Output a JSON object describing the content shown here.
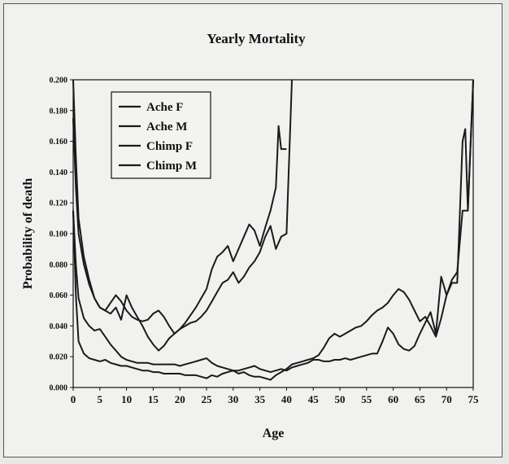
{
  "chart_data": {
    "type": "line",
    "title": "Yearly Mortality",
    "xlabel": "Age",
    "ylabel": "Probability of death",
    "xlim": [
      0,
      75
    ],
    "ylim": [
      0,
      0.2
    ],
    "xticks": [
      0,
      5,
      10,
      15,
      20,
      25,
      30,
      35,
      40,
      45,
      50,
      55,
      60,
      65,
      70,
      75
    ],
    "yticks": [
      "0.000",
      "0.020",
      "0.040",
      "0.060",
      "0.080",
      "0.100",
      "0.120",
      "0.140",
      "0.160",
      "0.180",
      "0.200"
    ],
    "legend_position": "top-left",
    "line_color": "#1a1a1a",
    "series": [
      {
        "name": "Ache F",
        "points": [
          [
            0,
            0.115
          ],
          [
            0.5,
            0.06
          ],
          [
            1,
            0.03
          ],
          [
            2,
            0.022
          ],
          [
            3,
            0.019
          ],
          [
            4,
            0.018
          ],
          [
            5,
            0.017
          ],
          [
            6,
            0.018
          ],
          [
            7,
            0.016
          ],
          [
            8,
            0.015
          ],
          [
            9,
            0.014
          ],
          [
            10,
            0.014
          ],
          [
            11,
            0.013
          ],
          [
            12,
            0.012
          ],
          [
            13,
            0.011
          ],
          [
            14,
            0.011
          ],
          [
            15,
            0.01
          ],
          [
            16,
            0.01
          ],
          [
            17,
            0.009
          ],
          [
            18,
            0.009
          ],
          [
            19,
            0.009
          ],
          [
            20,
            0.009
          ],
          [
            21,
            0.008
          ],
          [
            22,
            0.008
          ],
          [
            23,
            0.008
          ],
          [
            24,
            0.007
          ],
          [
            25,
            0.006
          ],
          [
            26,
            0.008
          ],
          [
            27,
            0.007
          ],
          [
            28,
            0.009
          ],
          [
            29,
            0.01
          ],
          [
            30,
            0.011
          ],
          [
            31,
            0.009
          ],
          [
            32,
            0.01
          ],
          [
            33,
            0.008
          ],
          [
            34,
            0.007
          ],
          [
            35,
            0.007
          ],
          [
            36,
            0.006
          ],
          [
            37,
            0.005
          ],
          [
            38,
            0.008
          ],
          [
            39,
            0.01
          ],
          [
            40,
            0.012
          ],
          [
            41,
            0.015
          ],
          [
            42,
            0.016
          ],
          [
            43,
            0.017
          ],
          [
            44,
            0.018
          ],
          [
            45,
            0.019
          ],
          [
            46,
            0.021
          ],
          [
            47,
            0.026
          ],
          [
            48,
            0.032
          ],
          [
            49,
            0.035
          ],
          [
            50,
            0.033
          ],
          [
            51,
            0.035
          ],
          [
            52,
            0.037
          ],
          [
            53,
            0.039
          ],
          [
            54,
            0.04
          ],
          [
            55,
            0.043
          ],
          [
            56,
            0.047
          ],
          [
            57,
            0.05
          ],
          [
            58,
            0.052
          ],
          [
            59,
            0.055
          ],
          [
            60,
            0.06
          ],
          [
            61,
            0.064
          ],
          [
            62,
            0.062
          ],
          [
            63,
            0.057
          ],
          [
            64,
            0.05
          ],
          [
            65,
            0.043
          ],
          [
            66,
            0.046
          ],
          [
            67,
            0.04
          ],
          [
            68,
            0.033
          ],
          [
            69,
            0.045
          ],
          [
            70,
            0.06
          ],
          [
            71,
            0.07
          ],
          [
            72,
            0.075
          ],
          [
            73,
            0.115
          ],
          [
            74,
            0.115
          ],
          [
            75,
            0.2
          ]
        ]
      },
      {
        "name": "Ache M",
        "points": [
          [
            0,
            0.115
          ],
          [
            0.5,
            0.08
          ],
          [
            1,
            0.058
          ],
          [
            2,
            0.045
          ],
          [
            3,
            0.04
          ],
          [
            4,
            0.037
          ],
          [
            5,
            0.038
          ],
          [
            6,
            0.033
          ],
          [
            7,
            0.028
          ],
          [
            8,
            0.024
          ],
          [
            9,
            0.02
          ],
          [
            10,
            0.018
          ],
          [
            11,
            0.017
          ],
          [
            12,
            0.016
          ],
          [
            13,
            0.016
          ],
          [
            14,
            0.016
          ],
          [
            15,
            0.015
          ],
          [
            16,
            0.015
          ],
          [
            17,
            0.015
          ],
          [
            18,
            0.015
          ],
          [
            19,
            0.015
          ],
          [
            20,
            0.014
          ],
          [
            21,
            0.015
          ],
          [
            22,
            0.016
          ],
          [
            23,
            0.017
          ],
          [
            24,
            0.018
          ],
          [
            25,
            0.019
          ],
          [
            26,
            0.016
          ],
          [
            27,
            0.014
          ],
          [
            28,
            0.013
          ],
          [
            29,
            0.012
          ],
          [
            30,
            0.011
          ],
          [
            31,
            0.011
          ],
          [
            32,
            0.012
          ],
          [
            33,
            0.013
          ],
          [
            34,
            0.014
          ],
          [
            35,
            0.012
          ],
          [
            36,
            0.011
          ],
          [
            37,
            0.01
          ],
          [
            38,
            0.011
          ],
          [
            39,
            0.012
          ],
          [
            40,
            0.011
          ],
          [
            41,
            0.013
          ],
          [
            42,
            0.014
          ],
          [
            43,
            0.015
          ],
          [
            44,
            0.016
          ],
          [
            45,
            0.018
          ],
          [
            46,
            0.018
          ],
          [
            47,
            0.017
          ],
          [
            48,
            0.017
          ],
          [
            49,
            0.018
          ],
          [
            50,
            0.018
          ],
          [
            51,
            0.019
          ],
          [
            52,
            0.018
          ],
          [
            53,
            0.019
          ],
          [
            54,
            0.02
          ],
          [
            55,
            0.021
          ],
          [
            56,
            0.022
          ],
          [
            57,
            0.022
          ],
          [
            58,
            0.03
          ],
          [
            59,
            0.039
          ],
          [
            60,
            0.035
          ],
          [
            61,
            0.028
          ],
          [
            62,
            0.025
          ],
          [
            63,
            0.024
          ],
          [
            64,
            0.027
          ],
          [
            65,
            0.035
          ],
          [
            66,
            0.042
          ],
          [
            67,
            0.049
          ],
          [
            68,
            0.035
          ],
          [
            69,
            0.072
          ],
          [
            70,
            0.06
          ],
          [
            71,
            0.068
          ],
          [
            72,
            0.068
          ],
          [
            73,
            0.16
          ],
          [
            73.5,
            0.168
          ],
          [
            74,
            0.115
          ],
          [
            75,
            0.2
          ]
        ]
      },
      {
        "name": "Chimp F",
        "points": [
          [
            0,
            0.2
          ],
          [
            0.5,
            0.15
          ],
          [
            1,
            0.11
          ],
          [
            2,
            0.085
          ],
          [
            3,
            0.07
          ],
          [
            4,
            0.058
          ],
          [
            5,
            0.052
          ],
          [
            6,
            0.05
          ],
          [
            7,
            0.055
          ],
          [
            8,
            0.06
          ],
          [
            9,
            0.056
          ],
          [
            10,
            0.05
          ],
          [
            11,
            0.046
          ],
          [
            12,
            0.044
          ],
          [
            13,
            0.043
          ],
          [
            14,
            0.044
          ],
          [
            15,
            0.048
          ],
          [
            16,
            0.05
          ],
          [
            17,
            0.046
          ],
          [
            18,
            0.04
          ],
          [
            19,
            0.035
          ],
          [
            20,
            0.038
          ],
          [
            21,
            0.042
          ],
          [
            22,
            0.047
          ],
          [
            23,
            0.052
          ],
          [
            24,
            0.058
          ],
          [
            25,
            0.064
          ],
          [
            26,
            0.077
          ],
          [
            27,
            0.085
          ],
          [
            28,
            0.088
          ],
          [
            29,
            0.092
          ],
          [
            30,
            0.082
          ],
          [
            31,
            0.09
          ],
          [
            32,
            0.098
          ],
          [
            33,
            0.106
          ],
          [
            34,
            0.102
          ],
          [
            35,
            0.092
          ],
          [
            36,
            0.104
          ],
          [
            37,
            0.115
          ],
          [
            38,
            0.13
          ],
          [
            38.5,
            0.17
          ],
          [
            39,
            0.155
          ],
          [
            40,
            0.155
          ]
        ]
      },
      {
        "name": "Chimp M",
        "points": [
          [
            0,
            0.175
          ],
          [
            0.5,
            0.13
          ],
          [
            1,
            0.1
          ],
          [
            2,
            0.08
          ],
          [
            3,
            0.067
          ],
          [
            4,
            0.058
          ],
          [
            5,
            0.052
          ],
          [
            6,
            0.05
          ],
          [
            7,
            0.048
          ],
          [
            8,
            0.052
          ],
          [
            9,
            0.044
          ],
          [
            10,
            0.06
          ],
          [
            11,
            0.052
          ],
          [
            12,
            0.046
          ],
          [
            13,
            0.04
          ],
          [
            14,
            0.033
          ],
          [
            15,
            0.028
          ],
          [
            16,
            0.024
          ],
          [
            17,
            0.027
          ],
          [
            18,
            0.032
          ],
          [
            19,
            0.035
          ],
          [
            20,
            0.038
          ],
          [
            21,
            0.04
          ],
          [
            22,
            0.042
          ],
          [
            23,
            0.043
          ],
          [
            24,
            0.046
          ],
          [
            25,
            0.05
          ],
          [
            26,
            0.056
          ],
          [
            27,
            0.062
          ],
          [
            28,
            0.068
          ],
          [
            29,
            0.07
          ],
          [
            30,
            0.075
          ],
          [
            31,
            0.068
          ],
          [
            32,
            0.072
          ],
          [
            33,
            0.078
          ],
          [
            34,
            0.082
          ],
          [
            35,
            0.088
          ],
          [
            36,
            0.098
          ],
          [
            37,
            0.105
          ],
          [
            38,
            0.09
          ],
          [
            39,
            0.098
          ],
          [
            40,
            0.1
          ],
          [
            41,
            0.2
          ]
        ]
      }
    ]
  }
}
